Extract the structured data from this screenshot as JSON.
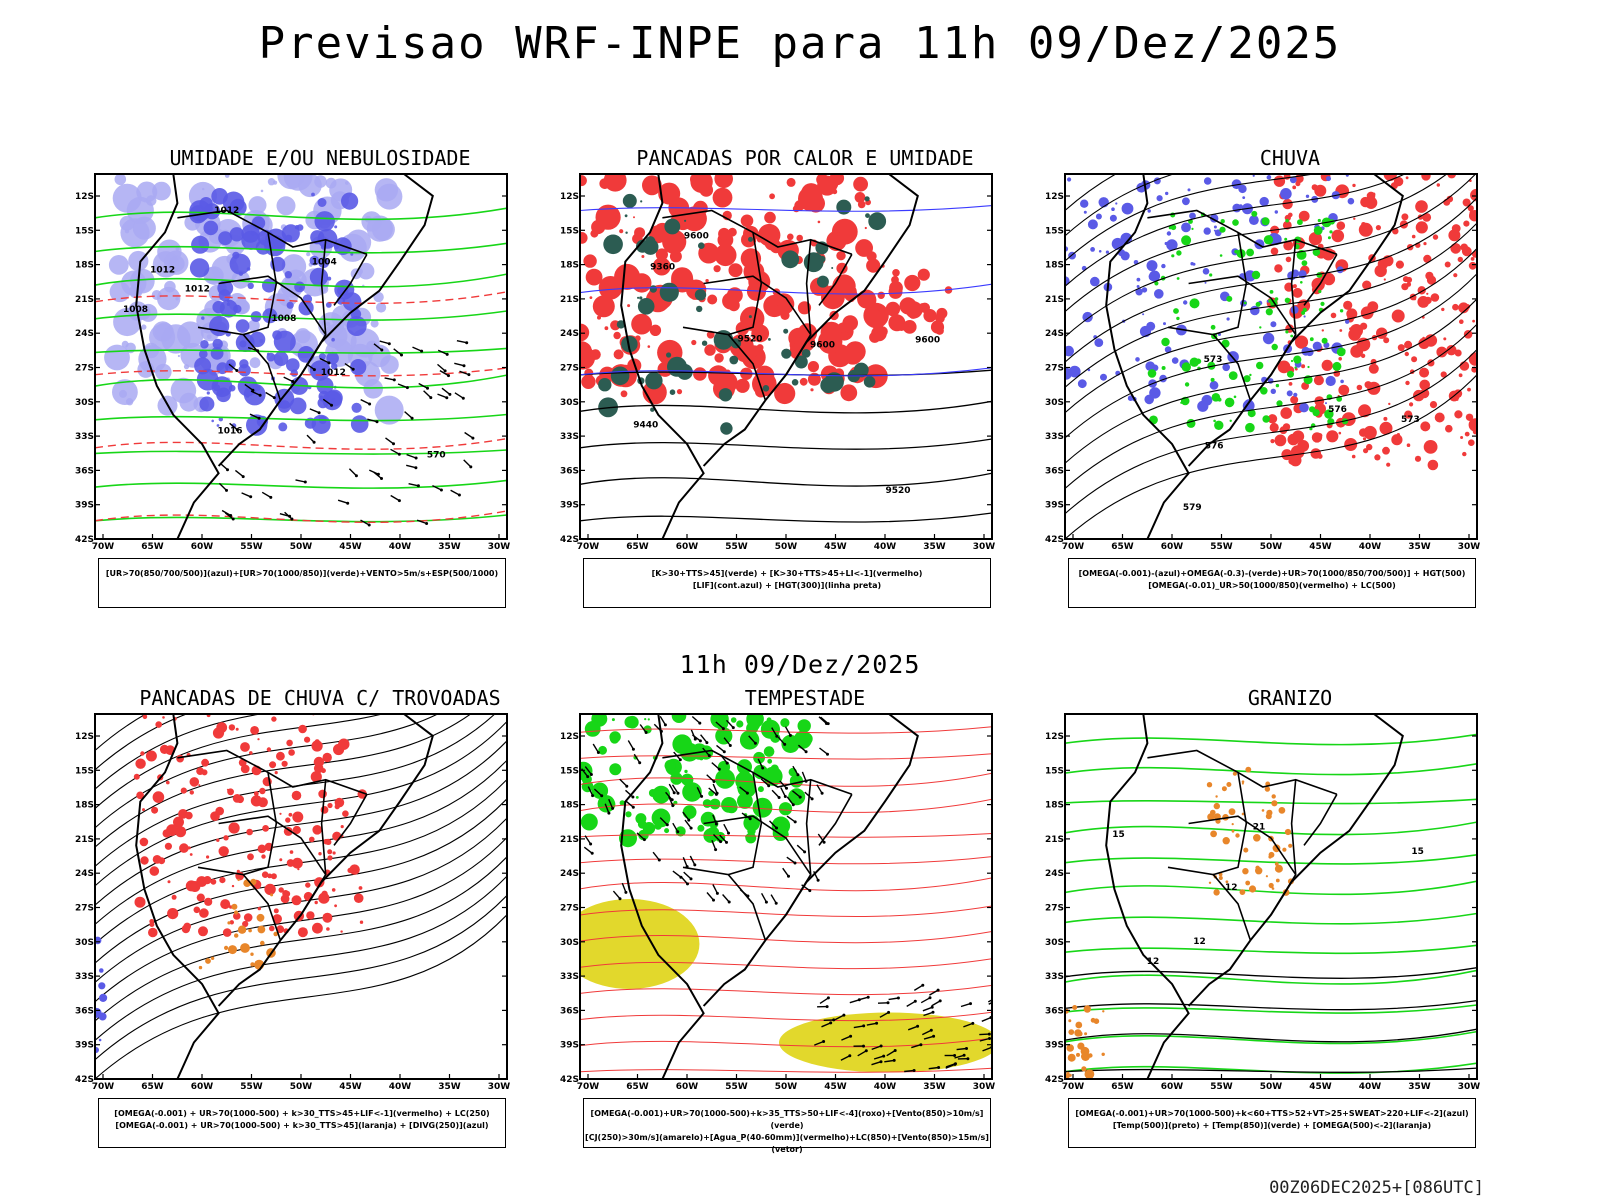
{
  "header": {
    "title": "Previsao WRF-INPE  para 11h 09/Dez/2025"
  },
  "middle": {
    "title": "11h 09/Dez/2025"
  },
  "footer": {
    "stamp": "00Z06DEC2025+[086UTC]"
  },
  "axes": {
    "lat_labels": [
      "12S",
      "15S",
      "18S",
      "21S",
      "24S",
      "27S",
      "30S",
      "33S",
      "36S",
      "39S",
      "42S"
    ],
    "lon_labels": [
      "70W",
      "65W",
      "60W",
      "55W",
      "50W",
      "45W",
      "40W",
      "35W",
      "30W"
    ]
  },
  "colors": {
    "blue": "#5a5ae6",
    "light_blue": "#a9a9f2",
    "green": "#17d617",
    "red": "#f03a3a",
    "dark_teal": "#2c5c52",
    "yellow": "#e2d82c",
    "orange": "#e8862a"
  },
  "panels": [
    {
      "title": "UMIDADE E/OU NEBULOSIDADE",
      "legend": [
        "[UR>70(850/700/500)](azul)+[UR>70(1000/850)](verde)+VENTO>5m/s+ESP(500/1000)"
      ],
      "contour_labels": [
        "1012",
        "1012",
        "1008",
        "1012",
        "1016",
        "1004",
        "1008",
        "1012",
        "570"
      ]
    },
    {
      "title": "PANCADAS POR CALOR E UMIDADE",
      "legend": [
        "[K>30+TTS>45](verde)  +  [K>30+TTS>45+LI<-1](vermelho)",
        "[LIF](cont.azul)  +  [HGT(300)](linha preta)"
      ],
      "contour_labels": [
        "9600",
        "9600",
        "9520",
        "9520",
        "9440",
        "9360",
        "9600"
      ]
    },
    {
      "title": "CHUVA",
      "legend": [
        "[OMEGA(-0.001)-(azul)+OMEGA(-0.3)-(verde)+UR>70(1000/850/700/500)]  +  HGT(500)",
        "[OMEGA(-0.01)_UR>50(1000/850)(vermelho)  +  LC(500)"
      ],
      "contour_labels": [
        "579",
        "576",
        "573",
        "576",
        "573"
      ]
    },
    {
      "title": "PANCADAS DE CHUVA C/ TROVOADAS",
      "legend": [
        "[OMEGA(-0.001)  +  UR>70(1000-500)  +  k>30_TTS>45+LIF<-1](vermelho)  +  LC(250)",
        "[OMEGA(-0.001)  +  UR>70(1000-500)  +  k>30_TTS>45](laranja)  +  [DIVG(250)](azul)"
      ],
      "contour_labels": []
    },
    {
      "title": "TEMPESTADE",
      "legend": [
        "[OMEGA(-0.001)+UR>70(1000-500)+k>35_TTS>50+LIF<-4](roxo)+[Vento(850)>10m/s](verde)",
        "[CJ(250)>30m/s](amarelo)+[Agua_P(40-60mm)](vermelho)+LC(850)+[Vento(850)>15m/s](vetor)"
      ],
      "contour_labels": []
    },
    {
      "title": "GRANIZO",
      "legend": [
        "[OMEGA(-0.001)+UR>70(1000-500)+k<60+TTS>52+VT>25+SWEAT>220+LIF<-2](azul)",
        "[Temp(500)](preto)  +  [Temp(850)](verde)  +  [OMEGA(500)<-2](laranja)"
      ],
      "contour_labels": [
        "12",
        "15",
        "12",
        "15",
        "12",
        "21"
      ]
    }
  ]
}
